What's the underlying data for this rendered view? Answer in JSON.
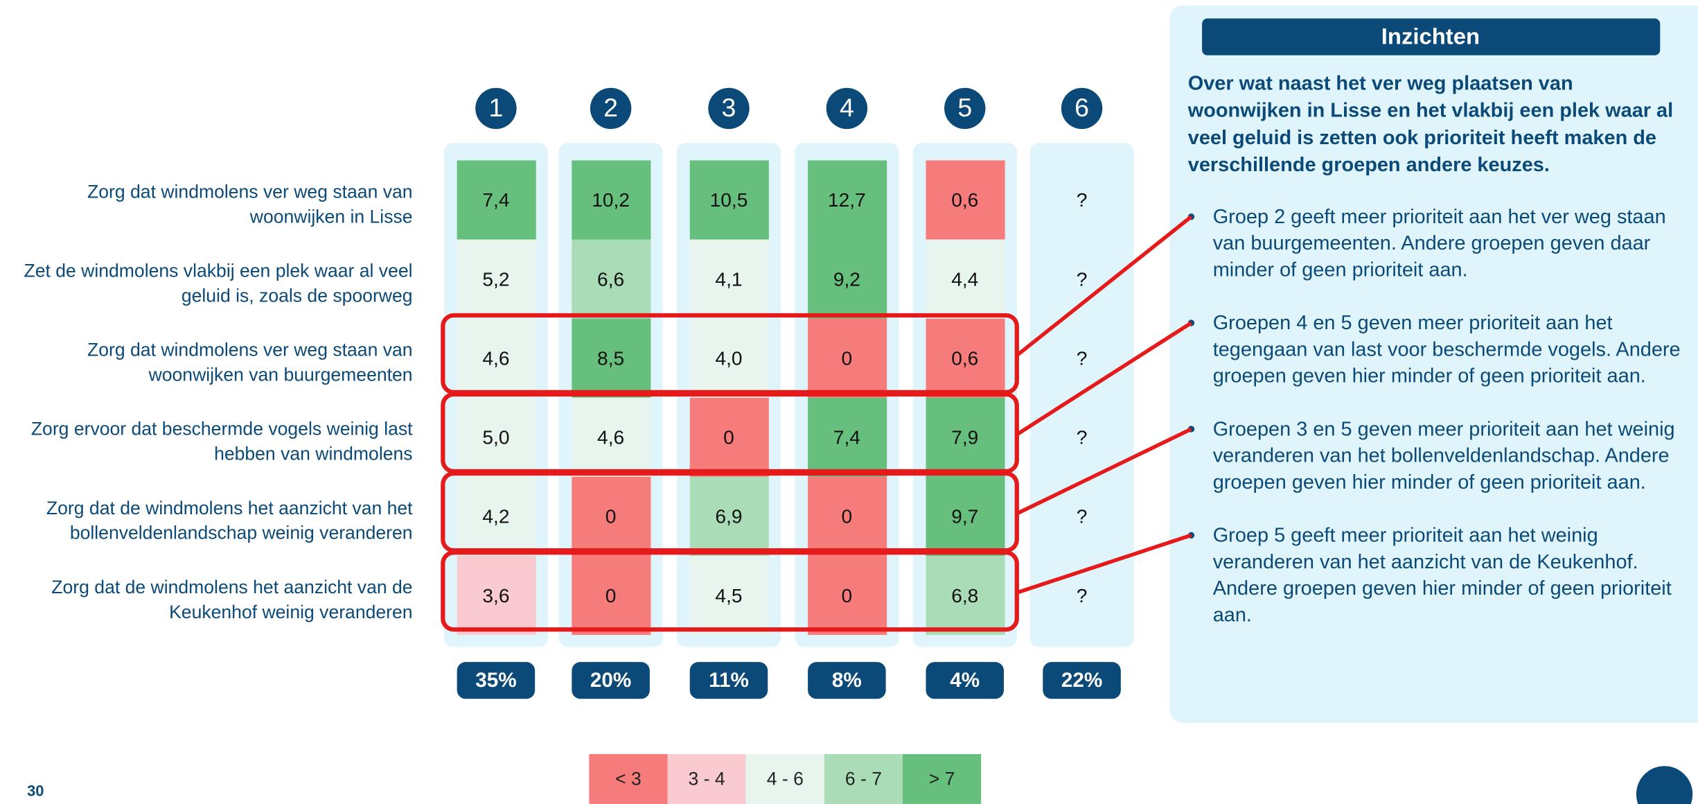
{
  "columns": [
    "1",
    "2",
    "3",
    "4",
    "5",
    "6"
  ],
  "rows": [
    {
      "label": [
        "Zorg dat windmolens ver weg staan van",
        "woonwijken in Lisse"
      ],
      "cells": [
        {
          "text": "7,4",
          "color": "#66bf7c"
        },
        {
          "text": "10,2",
          "color": "#66bf7c"
        },
        {
          "text": "10,5",
          "color": "#66bf7c"
        },
        {
          "text": "12,7",
          "color": "#66bf7c"
        },
        {
          "text": "0,6",
          "color": "#f67c7c"
        },
        {
          "text": "?"
        }
      ]
    },
    {
      "label": [
        "Zet de windmolens vlakbij een plek waar al veel",
        "geluid is, zoals de spoorweg"
      ],
      "cells": [
        {
          "text": "5,2",
          "color": "#e8f4ee"
        },
        {
          "text": "6,6",
          "color": "#a9dcb7"
        },
        {
          "text": "4,1",
          "color": "#e8f4ee"
        },
        {
          "text": "9,2",
          "color": "#66bf7c"
        },
        {
          "text": "4,4",
          "color": "#e8f4ee"
        },
        {
          "text": "?"
        }
      ]
    },
    {
      "label": [
        "Zorg dat windmolens ver weg staan van",
        "woonwijken van buurgemeenten"
      ],
      "cells": [
        {
          "text": "4,6",
          "color": "#e8f4ee"
        },
        {
          "text": "8,5",
          "color": "#66bf7c"
        },
        {
          "text": "4,0",
          "color": "#e8f4ee"
        },
        {
          "text": "0",
          "color": "#f67c7c"
        },
        {
          "text": "0,6",
          "color": "#f67c7c"
        },
        {
          "text": "?"
        }
      ]
    },
    {
      "label": [
        "Zorg ervoor dat beschermde vogels weinig last",
        "hebben van windmolens"
      ],
      "cells": [
        {
          "text": "5,0",
          "color": "#e8f4ee"
        },
        {
          "text": "4,6",
          "color": "#e8f4ee"
        },
        {
          "text": "0",
          "color": "#f67c7c"
        },
        {
          "text": "7,4",
          "color": "#66bf7c"
        },
        {
          "text": "7,9",
          "color": "#66bf7c"
        },
        {
          "text": "?"
        }
      ]
    },
    {
      "label": [
        "Zorg dat de windmolens het aanzicht van het",
        "bollenveldenlandschap weinig veranderen"
      ],
      "cells": [
        {
          "text": "4,2",
          "color": "#e8f4ee"
        },
        {
          "text": "0",
          "color": "#f67c7c"
        },
        {
          "text": "6,9",
          "color": "#a9dcb7"
        },
        {
          "text": "0",
          "color": "#f67c7c"
        },
        {
          "text": "9,7",
          "color": "#66bf7c"
        },
        {
          "text": "?"
        }
      ]
    },
    {
      "label": [
        "Zorg dat de windmolens het aanzicht van de",
        "Keukenhof weinig veranderen"
      ],
      "cells": [
        {
          "text": "3,6",
          "color": "#f9cbd0"
        },
        {
          "text": "0",
          "color": "#f67c7c"
        },
        {
          "text": "4,5",
          "color": "#e8f4ee"
        },
        {
          "text": "0",
          "color": "#f67c7c"
        },
        {
          "text": "6,8",
          "color": "#a9dcb7"
        },
        {
          "text": "?"
        }
      ]
    }
  ],
  "shares": [
    "35%",
    "20%",
    "11%",
    "8%",
    "4%",
    "22%"
  ],
  "legend": [
    {
      "label": "< 3",
      "color": "#f67c7c"
    },
    {
      "label": "3 - 4",
      "color": "#f9cbd0"
    },
    {
      "label": "4 - 6",
      "color": "#e8f4ee"
    },
    {
      "label": "6 - 7",
      "color": "#a9dcb7"
    },
    {
      "label": "> 7",
      "color": "#66bf7c"
    }
  ],
  "insights": {
    "title": "Inzichten",
    "intro": [
      "Over wat naast het ver weg plaatsen van",
      "woonwijken in Lisse en het vlakbij een plek waar al",
      "veel geluid is zetten ook prioriteit heeft maken de",
      "verschillende groepen andere keuzes."
    ],
    "bullets": [
      [
        "Groep 2 geeft meer prioriteit aan het ver weg staan",
        "van buurgemeenten. Andere groepen geven daar",
        "minder of geen prioriteit aan."
      ],
      [
        "Groepen 4 en 5 geven meer prioriteit aan het",
        "tegengaan van last voor beschermde vogels. Andere",
        "groepen geven hier minder of geen prioriteit aan."
      ],
      [
        "Groepen 3 en 5 geven meer prioriteit aan het weinig",
        "veranderen van het bollenveldenlandschap. Andere",
        "groepen geven hier minder of geen prioriteit aan."
      ],
      [
        "Groep 5 geeft meer prioriteit aan het weinig",
        "veranderen van het aanzicht van de Keukenhof.",
        "Andere groepen geven hier minder of geen prioriteit",
        "aan."
      ]
    ]
  },
  "page_number": "30"
}
